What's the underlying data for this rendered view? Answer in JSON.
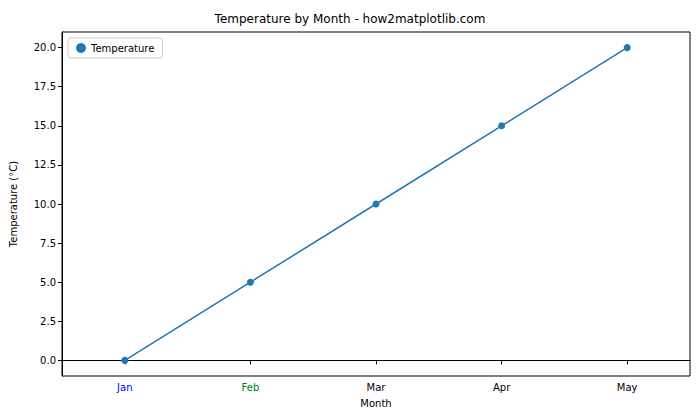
{
  "chart_data": {
    "type": "line",
    "title": "Temperature by Month - how2matplotlib.com",
    "x_label": "Month",
    "y_label": "Temperature (°C)",
    "categories": [
      "Jan",
      "Feb",
      "Mar",
      "Apr",
      "May"
    ],
    "series": [
      {
        "name": "Temperature",
        "color": "#1f77b4",
        "values": [
          0,
          5,
          10,
          15,
          20
        ],
        "marker": "circle",
        "line_style": "solid"
      }
    ],
    "ylim": [
      -1,
      21
    ],
    "yticks": [
      {
        "value": 0,
        "label": "0.0"
      },
      2.5,
      {
        "value": 5,
        "label": "5.0"
      },
      7.5,
      {
        "value": 10,
        "label": "10.0"
      },
      12.5,
      {
        "value": 15,
        "label": "15.0"
      },
      17.5,
      {
        "value": 20,
        "label": "20.0"
      }
    ],
    "grid": false,
    "legend": "upper left"
  }
}
